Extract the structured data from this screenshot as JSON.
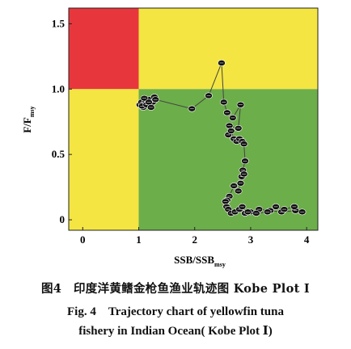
{
  "chart_data": {
    "type": "scatter",
    "xlabel": "SSB/SSB",
    "xlabel_sub": "msy",
    "ylabel": "F/F",
    "ylabel_sub": "msy",
    "xlim": [
      -0.25,
      4.2
    ],
    "ylim": [
      -0.08,
      1.62
    ],
    "x_ticks": [
      0,
      1,
      2,
      3,
      4
    ],
    "x_tick_labels": [
      "0",
      "1",
      "2",
      "3",
      "4"
    ],
    "y_ticks": [
      0,
      0.5,
      1.0,
      1.5
    ],
    "y_tick_labels": [
      "0",
      "0.5",
      "1.0",
      "1.5"
    ],
    "quadrants": [
      {
        "name": "overfished-overfishing",
        "x": [
          -0.25,
          1
        ],
        "y": [
          1,
          1.62
        ],
        "color": "#e8373c"
      },
      {
        "name": "overfishing-only",
        "x": [
          1,
          4.2
        ],
        "y": [
          1,
          1.62
        ],
        "color": "#f4e542"
      },
      {
        "name": "overfished-only",
        "x": [
          -0.25,
          1
        ],
        "y": [
          -0.08,
          1
        ],
        "color": "#f4e542"
      },
      {
        "name": "healthy",
        "x": [
          1,
          4.2
        ],
        "y": [
          -0.08,
          1
        ],
        "color": "#6cae4a"
      }
    ],
    "series": [
      {
        "x": [
          1.02,
          1.05,
          1.08,
          1.12,
          1.16,
          1.2,
          1.25,
          1.06,
          1.1,
          1.14,
          1.18,
          1.22,
          1.28,
          1.3,
          1.95,
          2.25,
          2.48,
          2.52,
          2.58,
          2.68,
          2.82,
          2.78,
          2.62,
          2.6,
          2.65,
          2.7,
          2.75,
          2.8,
          2.85,
          2.88,
          2.9,
          2.86,
          2.84,
          2.88,
          2.82,
          2.78,
          2.7,
          2.62,
          2.58,
          2.55,
          2.57,
          2.6,
          2.65,
          2.72,
          2.8,
          2.9,
          3.0,
          3.15,
          3.35,
          3.55,
          3.8,
          3.92,
          3.78,
          3.6,
          3.45,
          3.3,
          3.1,
          2.95,
          2.85
        ],
        "y": [
          0.88,
          0.9,
          0.86,
          0.91,
          0.89,
          0.92,
          0.9,
          0.87,
          0.93,
          0.88,
          0.9,
          0.86,
          0.94,
          0.92,
          0.85,
          0.95,
          1.2,
          0.9,
          0.82,
          0.78,
          0.88,
          0.7,
          0.72,
          0.65,
          0.68,
          0.62,
          0.6,
          0.62,
          0.6,
          0.58,
          0.45,
          0.38,
          0.33,
          0.35,
          0.28,
          0.22,
          0.26,
          0.18,
          0.15,
          0.14,
          0.1,
          0.08,
          0.05,
          0.06,
          0.08,
          0.05,
          0.06,
          0.08,
          0.07,
          0.06,
          0.07,
          0.06,
          0.1,
          0.08,
          0.1,
          0.06,
          0.05,
          0.06,
          0.1
        ]
      }
    ],
    "grid": false,
    "marker_color": "#111111",
    "line_color": "#444444"
  },
  "caption": {
    "cn": "图4　印度洋黄鳍金枪鱼渔业轨迹图 Kobe Plot Ⅰ",
    "en_line1": "Fig. 4　Trajectory chart of yellowfin tuna",
    "en_line2": "fishery in Indian Ocean( Kobe Plot Ⅰ)"
  }
}
